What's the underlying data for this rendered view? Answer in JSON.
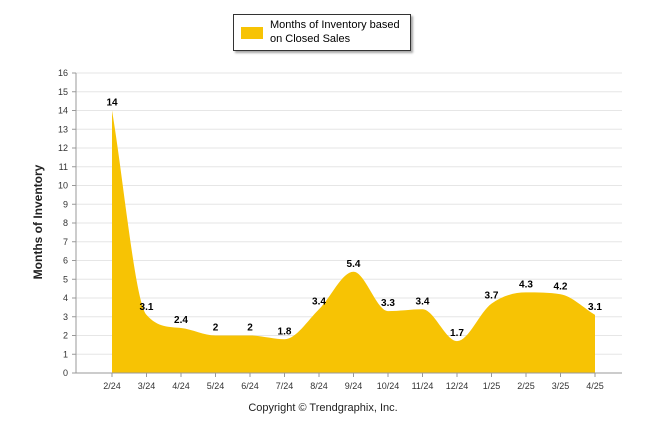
{
  "colors": {
    "fill": "#F7C304",
    "grid": "#E6E6E6",
    "axis": "#999999"
  },
  "legend": {
    "label": "Months of Inventory based on Closed Sales"
  },
  "copyright": "Copyright © Trendgraphix, Inc.",
  "chart_data": {
    "type": "area",
    "title": "",
    "xlabel": "",
    "ylabel": "Months of Inventory",
    "ylim": [
      0,
      16
    ],
    "yticks": [
      0,
      1,
      2,
      3,
      4,
      5,
      6,
      7,
      8,
      9,
      10,
      11,
      12,
      13,
      14,
      15,
      16
    ],
    "grid": true,
    "legend_position": "top-center",
    "categories": [
      "2/24",
      "3/24",
      "4/24",
      "5/24",
      "6/24",
      "7/24",
      "8/24",
      "9/24",
      "10/24",
      "11/24",
      "12/24",
      "1/25",
      "2/25",
      "3/25",
      "4/25"
    ],
    "series": [
      {
        "name": "Months of Inventory based on Closed Sales",
        "values": [
          14,
          3.1,
          2.4,
          2,
          2,
          1.8,
          3.4,
          5.4,
          3.3,
          3.4,
          1.7,
          3.7,
          4.3,
          4.2,
          3.1
        ],
        "labels": [
          "14",
          "3.1",
          "2.4",
          "2",
          "2",
          "1.8",
          "3.4",
          "5.4",
          "3.3",
          "3.4",
          "1.7",
          "3.7",
          "4.3",
          "4.2",
          "3.1"
        ]
      }
    ]
  }
}
